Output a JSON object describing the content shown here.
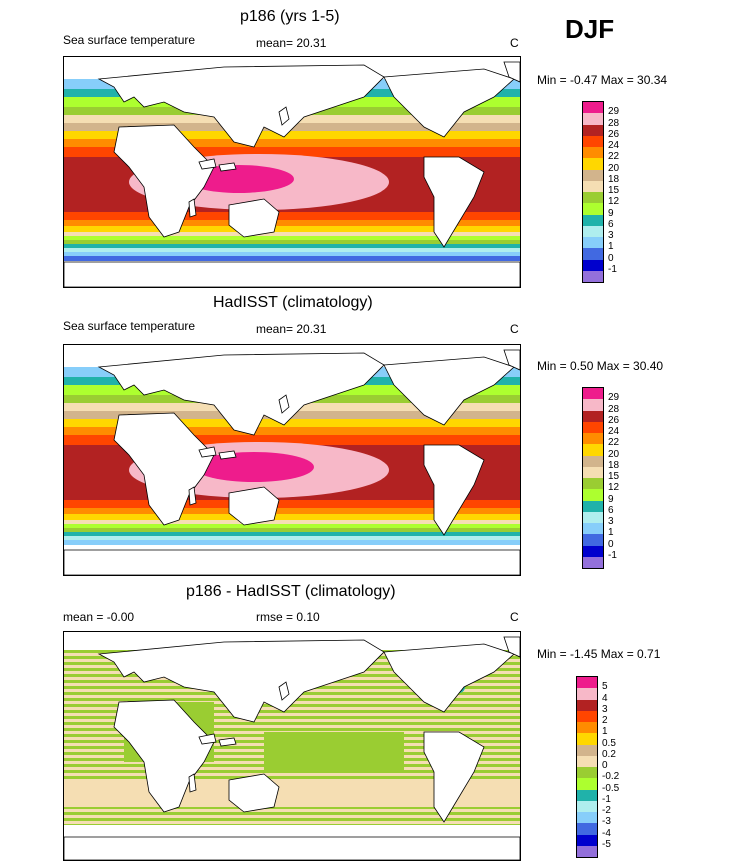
{
  "season": "DJF",
  "panels": [
    {
      "title": "p186 (yrs 1-5)",
      "left_label": "Sea surface temperature",
      "mid_label": "mean=  20.31",
      "units": "C",
      "minmax": "Min =  -0.47 Max =  30.34",
      "colorbar": {
        "labels": [
          "29",
          "28",
          "26",
          "24",
          "22",
          "20",
          "18",
          "15",
          "12",
          "9",
          "6",
          "3",
          "1",
          "0",
          "-1"
        ],
        "colors": [
          "#ee1c8c",
          "#f7b8c8",
          "#b22222",
          "#ff4500",
          "#ff8c00",
          "#ffd700",
          "#d2b48c",
          "#f5deb3",
          "#9acd32",
          "#adff2f",
          "#20b2aa",
          "#afeeee",
          "#87cefa",
          "#4169e1",
          "#0000cd",
          "#9370db"
        ]
      }
    },
    {
      "title": "HadISST (climatology)",
      "left_label": "Sea surface temperature",
      "mid_label": "mean=  20.31",
      "units": "C",
      "minmax": "Min =  0.50 Max =  30.40",
      "colorbar": {
        "labels": [
          "29",
          "28",
          "26",
          "24",
          "22",
          "20",
          "18",
          "15",
          "12",
          "9",
          "6",
          "3",
          "1",
          "0",
          "-1"
        ],
        "colors": [
          "#ee1c8c",
          "#f7b8c8",
          "#b22222",
          "#ff4500",
          "#ff8c00",
          "#ffd700",
          "#d2b48c",
          "#f5deb3",
          "#9acd32",
          "#adff2f",
          "#20b2aa",
          "#afeeee",
          "#87cefa",
          "#4169e1",
          "#0000cd",
          "#9370db"
        ]
      }
    },
    {
      "title": "p186 - HadISST (climatology)",
      "left_label": "mean =  -0.00",
      "mid_label": "rmse =   0.10",
      "units": "C",
      "minmax": "Min =  -1.45 Max =   0.71",
      "colorbar": {
        "labels": [
          "5",
          "4",
          "3",
          "2",
          "1",
          "0.5",
          "0.2",
          "0",
          "-0.2",
          "-0.5",
          "-1",
          "-2",
          "-3",
          "-4",
          "-5"
        ],
        "colors": [
          "#ee1c8c",
          "#f7b8c8",
          "#b22222",
          "#ff4500",
          "#ff8c00",
          "#ffd700",
          "#d2b48c",
          "#f5deb3",
          "#9acd32",
          "#adff2f",
          "#20b2aa",
          "#afeeee",
          "#87cefa",
          "#4169e1",
          "#0000cd",
          "#9370db"
        ]
      }
    }
  ]
}
